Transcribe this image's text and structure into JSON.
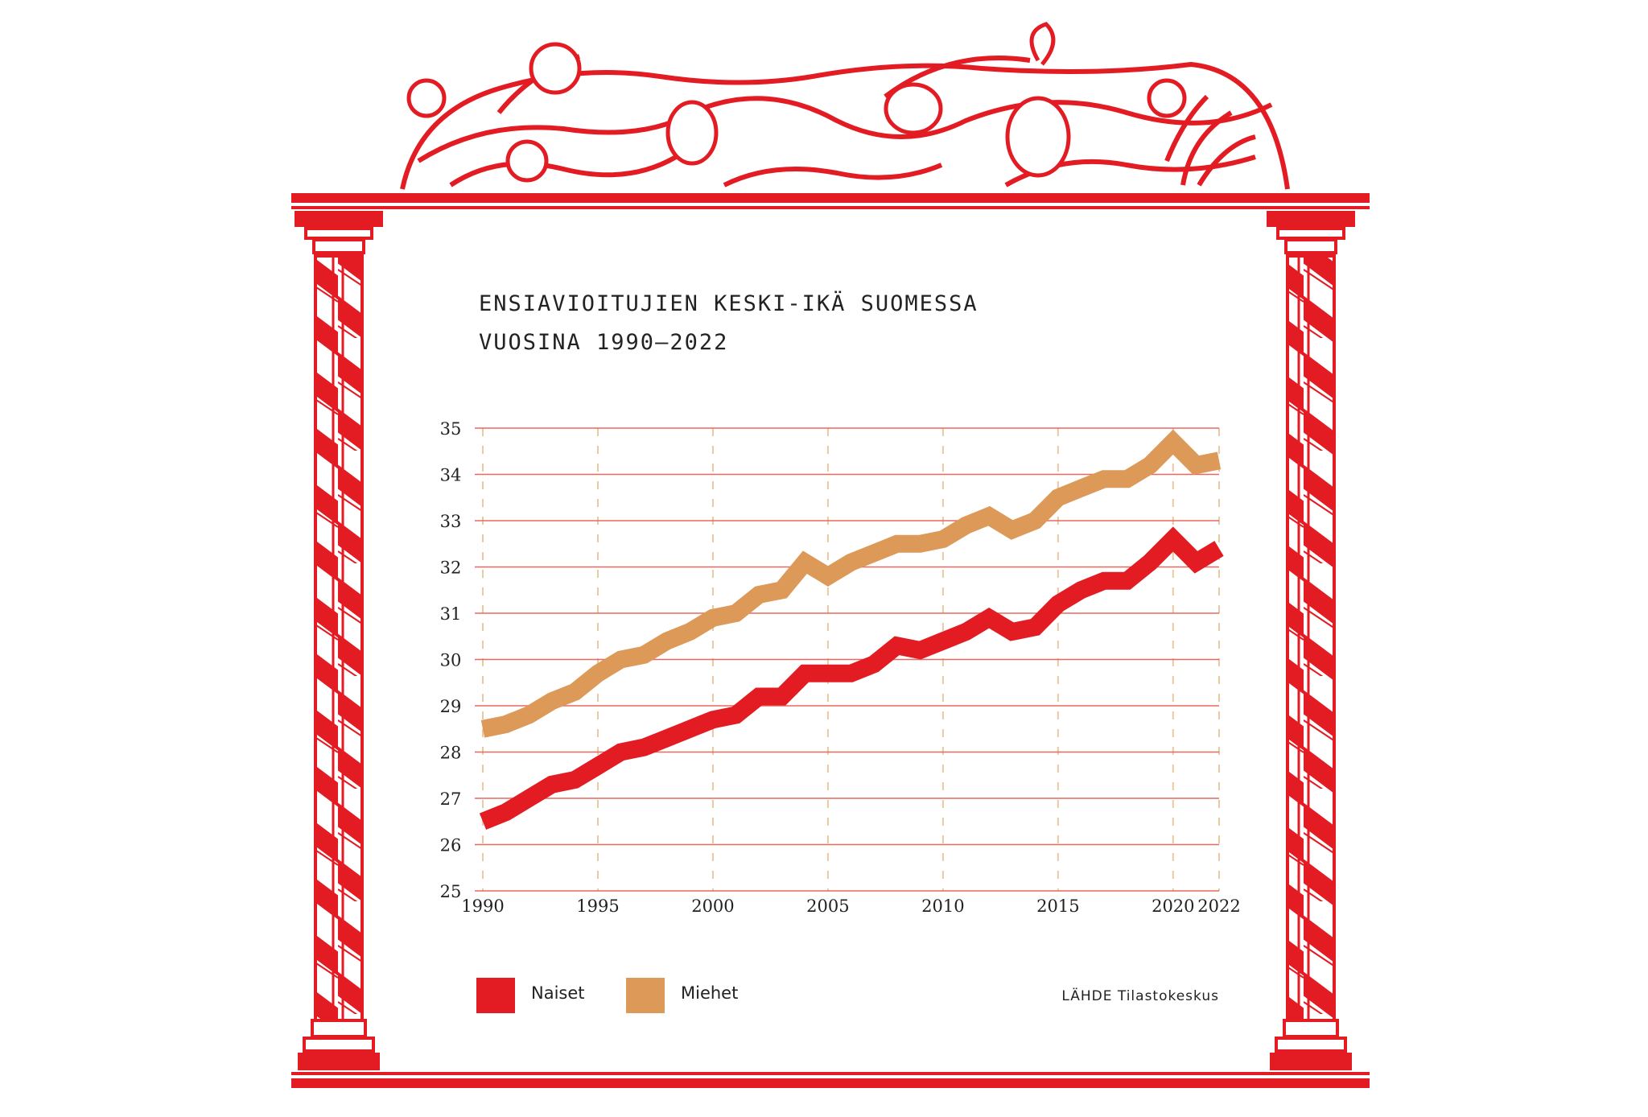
{
  "colors": {
    "frame": "#e31b23",
    "naiset": "#e31b23",
    "miehet": "#dc9958",
    "gridline": "#e8685f",
    "vgrid": "#e9c9a3"
  },
  "chart_data": {
    "type": "line",
    "title_lines": [
      "ENSIAVIOITUJIEN KESKI-IKÄ SUOMESSA",
      "VUOSINA 1990–2022"
    ],
    "xlabel": "",
    "ylabel": "",
    "x_ticks": [
      "1990",
      "1995",
      "2000",
      "2005",
      "2010",
      "2015",
      "2020",
      "2022"
    ],
    "y_ticks": [
      "25",
      "26",
      "27",
      "28",
      "29",
      "30",
      "31",
      "32",
      "33",
      "34",
      "35"
    ],
    "xlim": [
      1990,
      2022
    ],
    "ylim": [
      25,
      35
    ],
    "grid": true,
    "legend_position": "bottom-left",
    "x": [
      1990,
      1991,
      1992,
      1993,
      1994,
      1995,
      1996,
      1997,
      1998,
      1999,
      2000,
      2001,
      2002,
      2003,
      2004,
      2005,
      2006,
      2007,
      2008,
      2009,
      2010,
      2011,
      2012,
      2013,
      2014,
      2015,
      2016,
      2017,
      2018,
      2019,
      2020,
      2021,
      2022
    ],
    "series": [
      {
        "name": "Naiset",
        "color": "#e31b23",
        "values": [
          26.5,
          26.7,
          27.0,
          27.3,
          27.4,
          27.7,
          28.0,
          28.1,
          28.3,
          28.5,
          28.7,
          28.8,
          29.2,
          29.2,
          29.7,
          29.7,
          29.7,
          29.9,
          30.3,
          30.2,
          30.4,
          30.6,
          30.9,
          30.6,
          30.7,
          31.2,
          31.5,
          31.7,
          31.7,
          32.1,
          32.6,
          32.1,
          32.4
        ]
      },
      {
        "name": "Miehet",
        "color": "#dc9958",
        "values": [
          28.5,
          28.6,
          28.8,
          29.1,
          29.3,
          29.7,
          30.0,
          30.1,
          30.4,
          30.6,
          30.9,
          31.0,
          31.4,
          31.5,
          32.1,
          31.8,
          32.1,
          32.3,
          32.5,
          32.5,
          32.6,
          32.9,
          33.1,
          32.8,
          33.0,
          33.5,
          33.7,
          33.9,
          33.9,
          34.2,
          34.7,
          34.2,
          34.3
        ]
      }
    ],
    "source": "LÄHDE Tilastokeskus"
  }
}
